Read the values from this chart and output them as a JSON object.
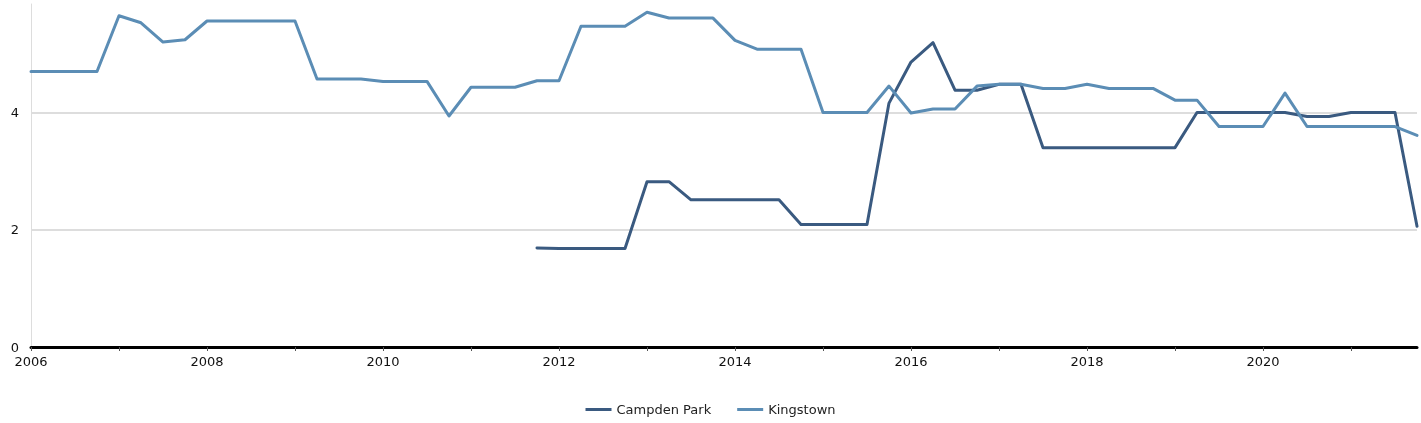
{
  "chart_data": {
    "type": "line",
    "x": [
      2006,
      2006.25,
      2006.5,
      2006.75,
      2007,
      2007.25,
      2007.5,
      2007.75,
      2008,
      2008.25,
      2008.5,
      2008.75,
      2009,
      2009.25,
      2009.5,
      2009.75,
      2010,
      2010.25,
      2010.5,
      2010.75,
      2011,
      2011.25,
      2011.5,
      2011.75,
      2012,
      2012.25,
      2012.5,
      2012.75,
      2013,
      2013.25,
      2013.5,
      2013.75,
      2014,
      2014.25,
      2014.5,
      2014.75,
      2015,
      2015.25,
      2015.5,
      2015.75,
      2016,
      2016.25,
      2016.5,
      2016.75,
      2017,
      2017.25,
      2017.5,
      2017.75,
      2018,
      2018.25,
      2018.5,
      2018.75,
      2019,
      2019.25,
      2019.5,
      2019.75,
      2020,
      2020.25,
      2020.5,
      2020.75,
      2021,
      2021.25,
      2021.5,
      2021.75
    ],
    "series": [
      {
        "name": "Campden Park",
        "color": "#3a5a80",
        "values": [
          null,
          null,
          null,
          null,
          null,
          null,
          null,
          null,
          null,
          null,
          null,
          null,
          null,
          null,
          null,
          null,
          null,
          null,
          null,
          null,
          null,
          null,
          null,
          1.69,
          1.68,
          1.68,
          1.68,
          1.68,
          2.82,
          2.82,
          2.51,
          2.51,
          2.51,
          2.51,
          2.51,
          2.09,
          2.09,
          2.09,
          2.09,
          4.16,
          4.86,
          5.19,
          4.38,
          4.38,
          4.48,
          4.48,
          3.4,
          3.4,
          3.4,
          3.4,
          3.4,
          3.4,
          3.4,
          4.0,
          4.0,
          4.0,
          4.0,
          4.0,
          3.93,
          3.93,
          4.0,
          4.0,
          4.0,
          2.06
        ]
      },
      {
        "name": "Kingstown",
        "color": "#5b8db5",
        "values": [
          4.7,
          4.7,
          4.7,
          4.7,
          5.65,
          5.53,
          5.2,
          5.24,
          5.56,
          5.56,
          5.56,
          5.56,
          5.56,
          4.57,
          4.57,
          4.57,
          4.53,
          4.53,
          4.53,
          3.94,
          4.43,
          4.43,
          4.43,
          4.54,
          4.54,
          5.47,
          5.47,
          5.47,
          5.71,
          5.61,
          5.61,
          5.61,
          5.23,
          5.08,
          5.08,
          5.08,
          4.0,
          4.0,
          4.0,
          4.45,
          3.99,
          4.06,
          4.06,
          4.45,
          4.48,
          4.48,
          4.41,
          4.41,
          4.48,
          4.41,
          4.41,
          4.41,
          4.21,
          4.21,
          3.76,
          3.76,
          3.76,
          4.33,
          3.76,
          3.76,
          3.76,
          3.76,
          3.76,
          3.61
        ]
      }
    ],
    "xlim": [
      2006,
      2021.75
    ],
    "xticks": [
      2006,
      {
        "value": 2007,
        "label": null
      },
      2008,
      {
        "value": 2009,
        "label": null
      },
      2010,
      {
        "value": 2011,
        "label": null
      },
      2012,
      {
        "value": 2013,
        "label": null
      },
      2014,
      {
        "value": 2015,
        "label": null
      },
      2016,
      {
        "value": 2017,
        "label": null
      },
      2018,
      {
        "value": 2019,
        "label": null
      },
      2020,
      {
        "value": 2021,
        "label": null
      }
    ],
    "ylim": [
      0,
      5.85
    ],
    "yticks": [
      0,
      2,
      4
    ],
    "grid": "y",
    "legend": "bottom",
    "marker": "none",
    "line_style": "solid"
  }
}
